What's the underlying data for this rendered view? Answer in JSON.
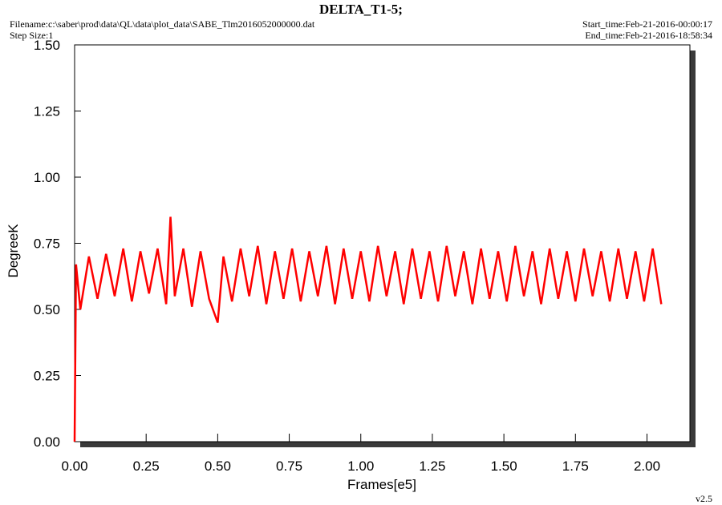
{
  "chart_data": {
    "type": "line",
    "title": "DELTA_T1-5;",
    "filename": "Filename:c:\\saber\\prod\\data\\QL\\data\\plot_data\\SABE_Tlm2016052000000.dat",
    "step_size": "Step Size:1",
    "start_time": "Start_time:Feb-21-2016-00:00:17",
    "end_time": "End_time:Feb-21-2016-18:58:34",
    "version": "v2.5",
    "xlabel": "Frames[e5]",
    "ylabel": "DegreeK",
    "color": "#ff0000",
    "x": [
      0,
      0.005,
      0.02,
      0.05,
      0.08,
      0.11,
      0.14,
      0.17,
      0.2,
      0.23,
      0.26,
      0.29,
      0.32,
      0.335,
      0.35,
      0.38,
      0.41,
      0.44,
      0.47,
      0.5,
      0.52,
      0.55,
      0.58,
      0.61,
      0.64,
      0.67,
      0.7,
      0.73,
      0.76,
      0.79,
      0.82,
      0.85,
      0.88,
      0.91,
      0.94,
      0.97,
      1.0,
      1.03,
      1.06,
      1.09,
      1.12,
      1.15,
      1.18,
      1.21,
      1.24,
      1.27,
      1.3,
      1.33,
      1.36,
      1.39,
      1.42,
      1.45,
      1.48,
      1.51,
      1.54,
      1.57,
      1.6,
      1.63,
      1.66,
      1.69,
      1.72,
      1.75,
      1.78,
      1.81,
      1.84,
      1.87,
      1.9,
      1.93,
      1.96,
      1.99,
      2.02,
      2.05
    ],
    "values": [
      0,
      0.67,
      0.5,
      0.7,
      0.54,
      0.71,
      0.55,
      0.73,
      0.53,
      0.72,
      0.56,
      0.73,
      0.52,
      0.85,
      0.55,
      0.73,
      0.51,
      0.72,
      0.54,
      0.45,
      0.7,
      0.53,
      0.73,
      0.55,
      0.74,
      0.52,
      0.72,
      0.54,
      0.73,
      0.53,
      0.72,
      0.55,
      0.74,
      0.52,
      0.73,
      0.54,
      0.72,
      0.53,
      0.74,
      0.55,
      0.72,
      0.52,
      0.73,
      0.54,
      0.72,
      0.53,
      0.74,
      0.55,
      0.72,
      0.52,
      0.73,
      0.54,
      0.72,
      0.53,
      0.74,
      0.55,
      0.72,
      0.52,
      0.73,
      0.54,
      0.72,
      0.53,
      0.73,
      0.55,
      0.72,
      0.53,
      0.73,
      0.54,
      0.72,
      0.53,
      0.73,
      0.52
    ],
    "xlim": [
      0,
      2.15
    ],
    "ylim": [
      0,
      1.5
    ],
    "xticks": [
      {
        "value": 0,
        "label": "0.00"
      },
      {
        "value": 0.25,
        "label": "0.25"
      },
      {
        "value": 0.5,
        "label": "0.50"
      },
      {
        "value": 0.75,
        "label": "0.75"
      },
      {
        "value": 1,
        "label": "1.00"
      },
      {
        "value": 1.25,
        "label": "1.25"
      },
      {
        "value": 1.5,
        "label": "1.50"
      },
      {
        "value": 1.75,
        "label": "1.75"
      },
      {
        "value": 2,
        "label": "2.00"
      }
    ],
    "yticks": [
      {
        "value": 0,
        "label": "0.00"
      },
      {
        "value": 0.25,
        "label": "0.25"
      },
      {
        "value": 0.5,
        "label": "0.50"
      },
      {
        "value": 0.75,
        "label": "0.75"
      },
      {
        "value": 1,
        "label": "1.00"
      },
      {
        "value": 1.25,
        "label": "1.25"
      },
      {
        "value": 1.5,
        "label": "1.50"
      }
    ]
  }
}
